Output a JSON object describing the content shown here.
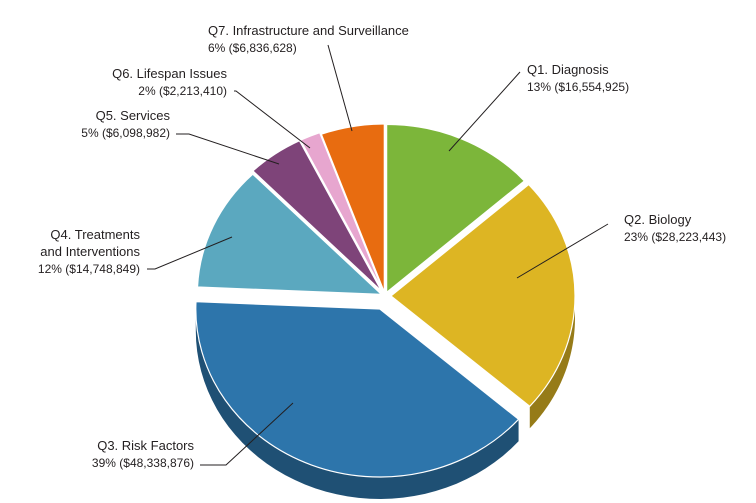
{
  "chart_data": {
    "type": "pie",
    "title": "",
    "slices": [
      {
        "name": "Q1. Diagnosis",
        "percent": 13,
        "amount": "$16,554,925",
        "value": 16554925,
        "color": "#7cb63a",
        "label": "13% ($16,554,925)"
      },
      {
        "name": "Q2. Biology",
        "percent": 23,
        "amount": "$28,223,443",
        "value": 28223443,
        "color": "#ddb523",
        "label": "23% ($28,223,443)"
      },
      {
        "name": "Q3. Risk Factors",
        "percent": 39,
        "amount": "$48,338,876",
        "value": 48338876,
        "color": "#2d75ab",
        "label": "39% ($48,338,876)"
      },
      {
        "name": "Q4. Treatments and Interventions",
        "name_lines": [
          "Q4. Treatments",
          "and Interventions"
        ],
        "percent": 12,
        "amount": "$14,748,849",
        "value": 14748849,
        "color": "#5ba8bf",
        "label": "12% ($14,748,849)"
      },
      {
        "name": "Q5. Services",
        "percent": 5,
        "amount": "$6,098,982",
        "value": 6098982,
        "color": "#7e4479",
        "label": "5% ($6,098,982)"
      },
      {
        "name": "Q6. Lifespan Issues",
        "percent": 2,
        "amount": "$2,213,410",
        "value": 2213410,
        "color": "#e7a6cf",
        "label": "2% ($2,213,410)"
      },
      {
        "name": "Q7. Infrastructure and Surveillance",
        "percent": 6,
        "amount": "$6,836,628",
        "value": 6836628,
        "color": "#e86c10",
        "label": "6% ($6,836,628)"
      }
    ]
  }
}
